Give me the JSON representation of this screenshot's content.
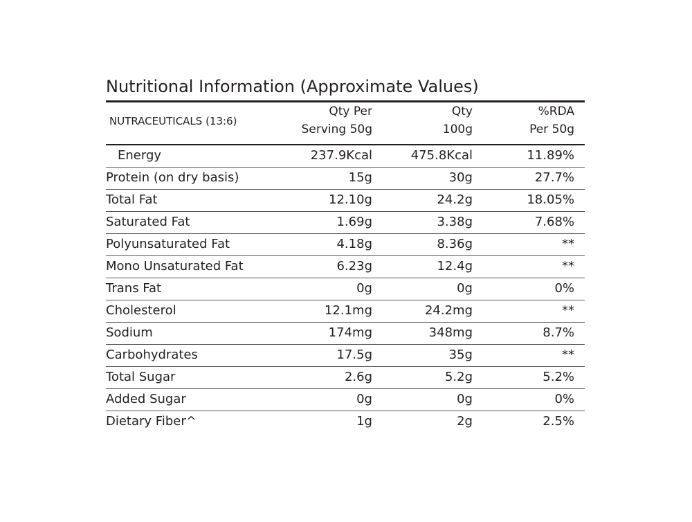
{
  "table": {
    "title": "Nutritional Information (Approximate Values)",
    "header": [
      [
        "NUTRACEUTICALS (13:6)"
      ],
      [
        "Qty Per",
        "Serving 50g"
      ],
      [
        "Qty",
        "100g"
      ],
      [
        "%RDA",
        "Per 50g"
      ]
    ],
    "rows": [
      [
        "Energy",
        "237.9Kcal",
        "475.8Kcal",
        "11.89%"
      ],
      [
        "Protein (on dry basis)",
        "15g",
        "30g",
        "27.7%"
      ],
      [
        "Total Fat",
        "12.10g",
        "24.2g",
        "18.05%"
      ],
      [
        "Saturated Fat",
        "1.69g",
        "3.38g",
        "7.68%"
      ],
      [
        "Polyunsaturated Fat",
        "4.18g",
        "8.36g",
        "**"
      ],
      [
        "Mono Unsaturated Fat",
        "6.23g",
        "12.4g",
        "**"
      ],
      [
        "Trans Fat",
        "0g",
        "0g",
        "0%"
      ],
      [
        "Cholesterol",
        "12.1mg",
        "24.2mg",
        "**"
      ],
      [
        "Sodium",
        "174mg",
        "348mg",
        "8.7%"
      ],
      [
        "Carbohydrates",
        "17.5g",
        "35g",
        "**"
      ],
      [
        "Total Sugar",
        "2.6g",
        "5.2g",
        "5.2%"
      ],
      [
        "Added Sugar",
        "0g",
        "0g",
        "0%"
      ],
      [
        "Dietary Fiber^",
        "1g",
        "2g",
        "2.5%"
      ]
    ]
  }
}
